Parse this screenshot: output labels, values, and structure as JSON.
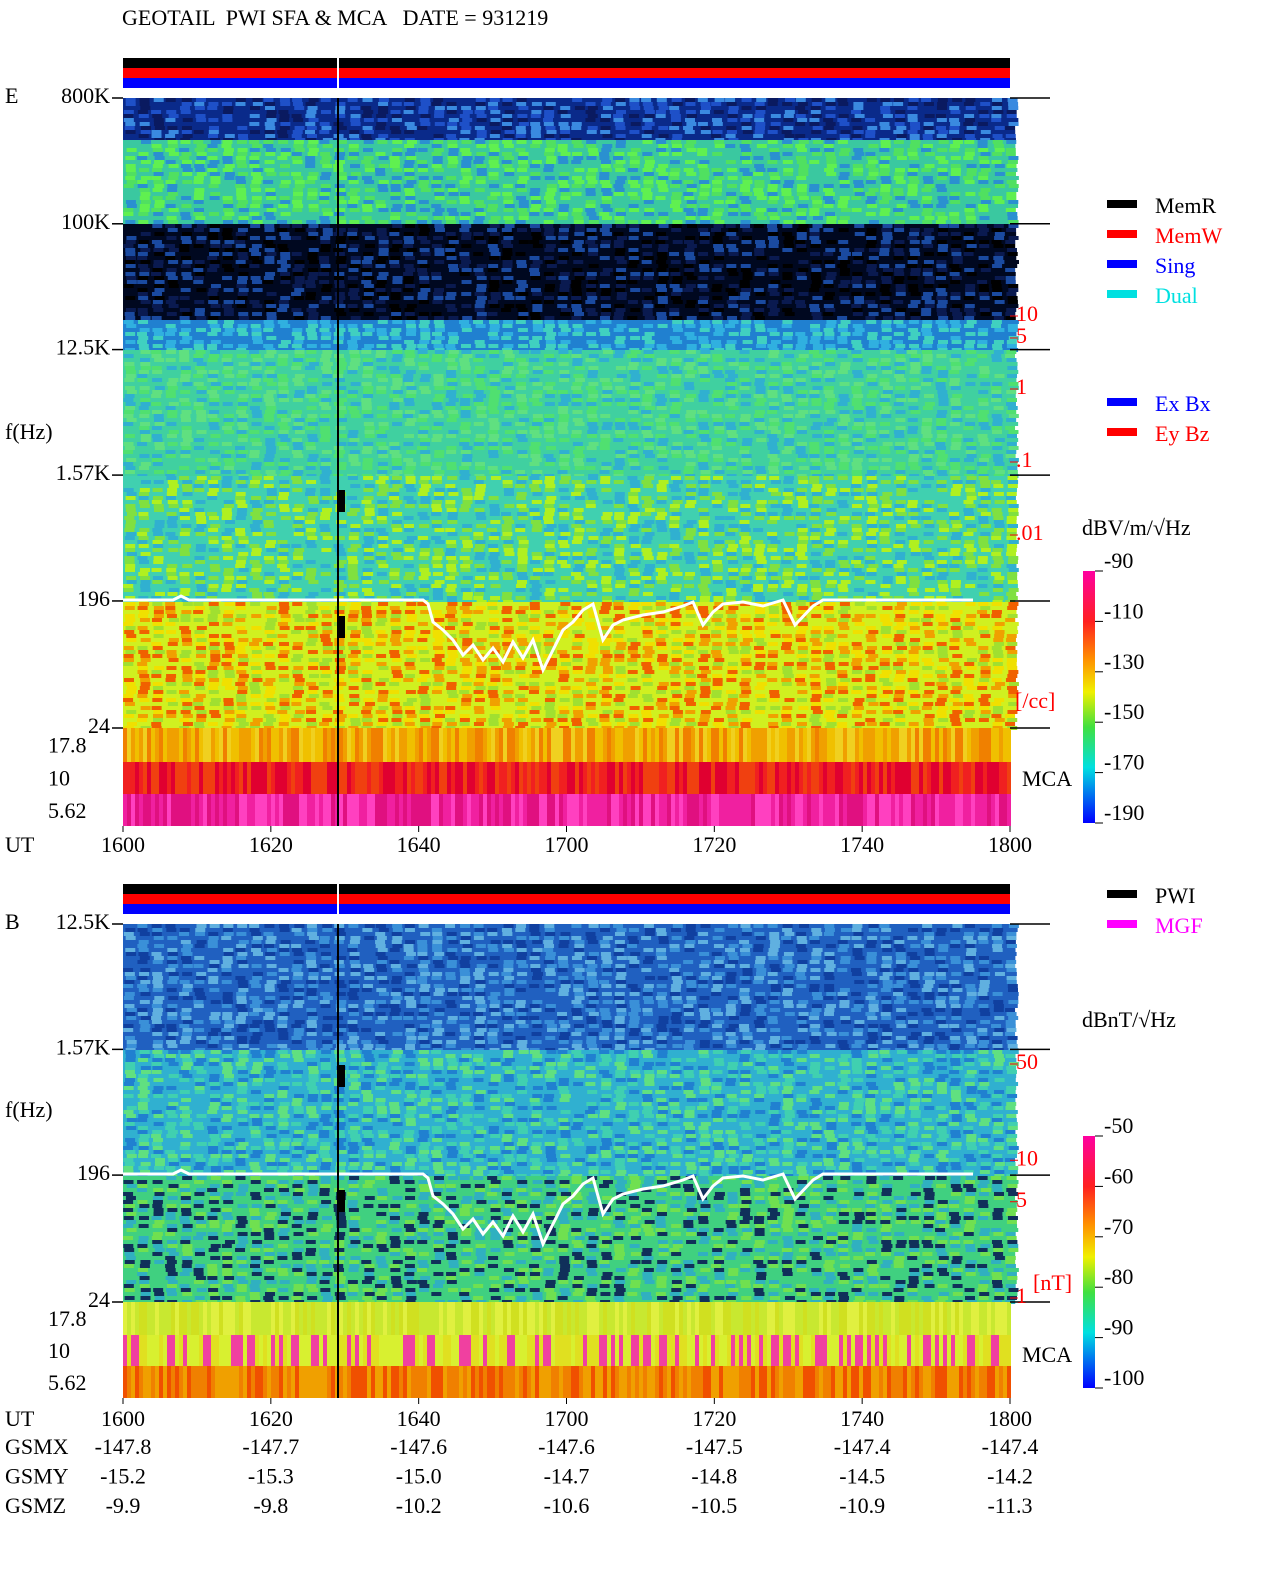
{
  "header": {
    "title": "GEOTAIL  PWI SFA & MCA   DATE = 931219"
  },
  "chart_data": [
    {
      "type": "spectrogram",
      "panel_label": "E",
      "y_label": "f(Hz)",
      "x_label": "UT",
      "log_y": true,
      "ylim": [
        24,
        800000
      ],
      "yticks": [
        {
          "value": 800000,
          "label": "800K"
        },
        {
          "value": 100000,
          "label": "100K"
        },
        {
          "value": 12500,
          "label": "12.5K"
        },
        {
          "value": 1570,
          "label": "1.57K"
        },
        196,
        24
      ],
      "mca_label": "MCA",
      "mca_ticks": [
        17.8,
        10,
        5.62
      ],
      "xticks": [
        "1600",
        "1620",
        "1640",
        "1700",
        "1720",
        "1740",
        "1800"
      ],
      "colorbar": {
        "label": "dBV/m/√Hz",
        "lim": [
          -190,
          -90
        ],
        "ticks": [
          -90,
          -110,
          -130,
          -150,
          -170,
          -190
        ]
      },
      "right_axis": {
        "label": "[/cc]",
        "color": "#ff0000",
        "log": true,
        "lim": [
          0.01,
          10
        ],
        "ticks": [
          10,
          5,
          1,
          {
            "value": 0.1,
            "label": ".1"
          },
          {
            "value": 0.01,
            "label": ".01"
          }
        ]
      },
      "status_legend": [
        {
          "name": "MemR",
          "color": "#000000"
        },
        {
          "name": "MemW",
          "color": "#ff0000"
        },
        {
          "name": "Sing",
          "color": "#0000ff"
        },
        {
          "name": "Dual",
          "color": "#00e0e0"
        }
      ],
      "component_legend": [
        {
          "name": "Ex Bx",
          "color": "#0000ff"
        },
        {
          "name": "Ey Bz",
          "color": "#ff0000"
        }
      ]
    },
    {
      "type": "spectrogram",
      "panel_label": "B",
      "y_label": "f(Hz)",
      "x_label": "UT",
      "log_y": true,
      "ylim": [
        24,
        12500
      ],
      "yticks": [
        {
          "value": 12500,
          "label": "12.5K"
        },
        {
          "value": 1570,
          "label": "1.57K"
        },
        196,
        24
      ],
      "mca_label": "MCA",
      "mca_ticks": [
        17.8,
        10,
        5.62
      ],
      "xticks": [
        "1600",
        "1620",
        "1640",
        "1700",
        "1720",
        "1740",
        "1800"
      ],
      "colorbar": {
        "label": "dBnT/√Hz",
        "lim": [
          -100,
          -50
        ],
        "ticks": [
          -50,
          -60,
          -70,
          -80,
          -90,
          -100
        ]
      },
      "right_axis": {
        "label": "[nT]",
        "color": "#ff0000",
        "log": true,
        "lim": [
          1,
          50
        ],
        "ticks": [
          50,
          10,
          5,
          1
        ]
      },
      "status_legend": [
        {
          "name": "PWI",
          "color": "#000000"
        },
        {
          "name": "MGF",
          "color": "#ff00ff"
        }
      ]
    }
  ],
  "orbit": {
    "rows": [
      {
        "label": "GSMX",
        "values": [
          "-147.8",
          "-147.7",
          "-147.6",
          "-147.6",
          "-147.5",
          "-147.4",
          "-147.4"
        ]
      },
      {
        "label": "GSMY",
        "values": [
          "-15.2",
          "-15.3",
          "-15.0",
          "-14.7",
          "-14.8",
          "-14.5",
          "-14.2"
        ]
      },
      {
        "label": "GSMZ",
        "values": [
          "-9.9",
          "-9.8",
          "-10.2",
          "-10.6",
          "-10.5",
          "-10.9",
          "-11.3"
        ]
      }
    ]
  }
}
